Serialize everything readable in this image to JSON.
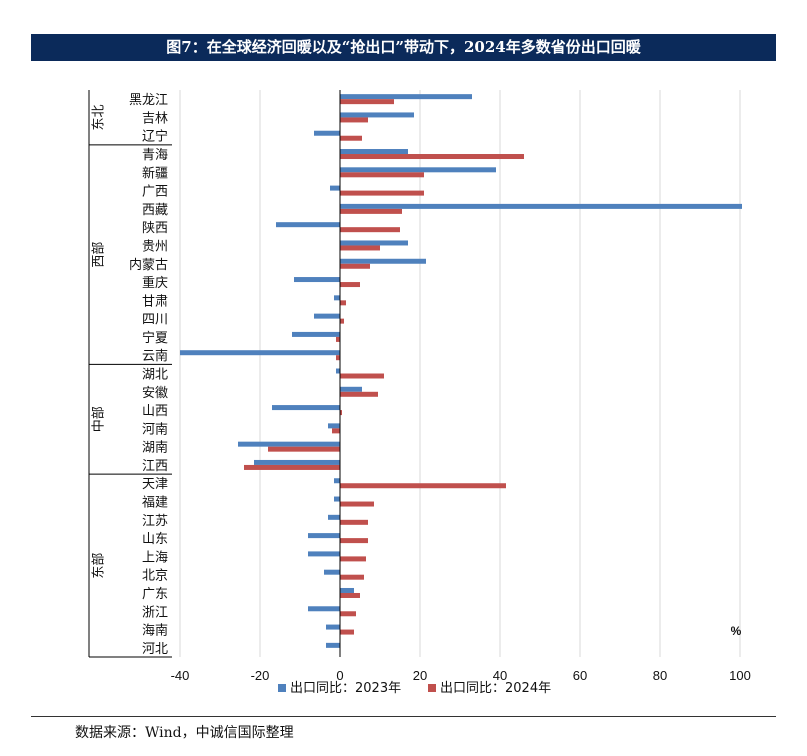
{
  "title": "图7：在全球经济回暖以及“抢出口”带动下，2024年多数省份出口回暖",
  "source": "数据来源：Wind，中诚信国际整理",
  "colors": {
    "series_2023": "#4f81bd",
    "series_2024": "#c0504d",
    "title_bg": "#0b2a5a",
    "grid": "#d9d9d9",
    "axis": "#000000"
  },
  "chart_data": {
    "type": "bar",
    "orientation": "horizontal",
    "unit_label": "%",
    "xlim": [
      -40,
      100
    ],
    "xticks": [
      -40,
      -20,
      0,
      20,
      40,
      60,
      80,
      100
    ],
    "categories": [
      "黑龙江",
      "吉林",
      "辽宁",
      "青海",
      "新疆",
      "广西",
      "西藏",
      "陕西",
      "贵州",
      "内蒙古",
      "重庆",
      "甘肃",
      "四川",
      "宁夏",
      "云南",
      "湖北",
      "安徽",
      "山西",
      "河南",
      "湖南",
      "江西",
      "天津",
      "福建",
      "江苏",
      "山东",
      "上海",
      "北京",
      "广东",
      "浙江",
      "海南",
      "河北"
    ],
    "groups": [
      {
        "name": "东北",
        "categories": [
          "黑龙江",
          "吉林",
          "辽宁"
        ]
      },
      {
        "name": "西部",
        "categories": [
          "青海",
          "新疆",
          "广西",
          "西藏",
          "陕西",
          "贵州",
          "内蒙古",
          "重庆",
          "甘肃",
          "四川",
          "宁夏",
          "云南"
        ]
      },
      {
        "name": "中部",
        "categories": [
          "湖北",
          "安徽",
          "山西",
          "河南",
          "湖南",
          "江西"
        ]
      },
      {
        "name": "东部",
        "categories": [
          "天津",
          "福建",
          "江苏",
          "山东",
          "上海",
          "北京",
          "广东",
          "浙江",
          "海南",
          "河北"
        ]
      }
    ],
    "series": [
      {
        "name": "出口同比：2023年",
        "values": [
          33,
          18.5,
          -6.5,
          17,
          39,
          -2.5,
          100.5,
          -16,
          17,
          21.5,
          -11.5,
          -1.5,
          -6.5,
          -12,
          -40,
          -1,
          5.5,
          -17,
          -3,
          -25.5,
          -21.5,
          -1.5,
          -1.5,
          -3,
          -8,
          -8,
          -4,
          3.5,
          -8,
          -3.5,
          -3.5
        ]
      },
      {
        "name": "出口同比：2024年",
        "values": [
          13.5,
          7,
          5.5,
          46,
          21,
          21,
          15.5,
          15,
          10,
          7.5,
          5,
          1.5,
          1,
          -1,
          -1,
          11,
          9.5,
          0.5,
          -2,
          -18,
          -24,
          41.5,
          8.5,
          7,
          7,
          6.5,
          6,
          5,
          4,
          3.5,
          0
        ]
      }
    ]
  }
}
